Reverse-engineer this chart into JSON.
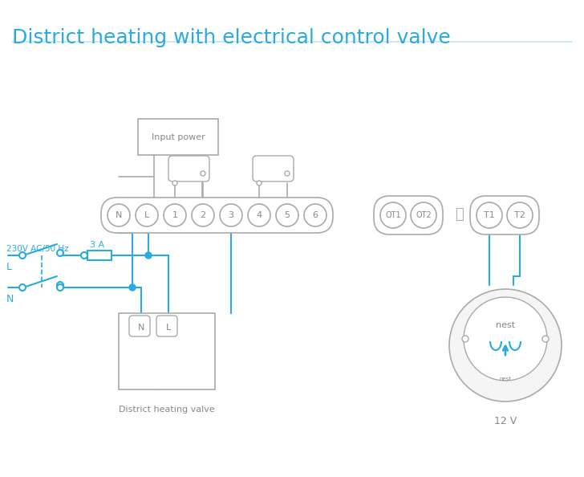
{
  "title": "District heating with electrical control valve",
  "title_color": "#29abe2",
  "title_fontsize": 18,
  "line_color": "#29abe2",
  "box_color": "#aaaaaa",
  "text_color": "#888888",
  "bg_color": "#ffffff",
  "terminal_labels": [
    "N",
    "L",
    "1",
    "2",
    "3",
    "4",
    "5",
    "6"
  ],
  "terminal2_labels": [
    "OT1",
    "OT2"
  ],
  "terminal3_labels": [
    "⏚",
    "T1",
    "T2"
  ],
  "input_power_label": "Input power",
  "district_valve_label": "District heating valve",
  "voltage_label": "230V AC/50 Hz",
  "fuse_label": "3 A",
  "L_label": "L",
  "N_label": "N",
  "v12_label": "12 V",
  "nest_label": "nest"
}
